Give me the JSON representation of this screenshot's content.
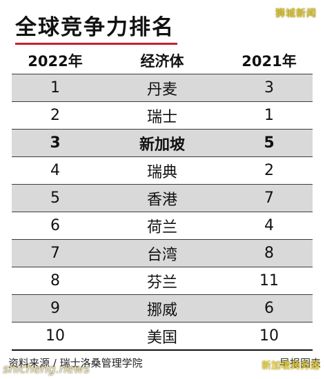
{
  "watermark_top": "狮城新闻",
  "title": "全球竞争力排名",
  "headers": [
    "2022年",
    "经济体",
    "2021年"
  ],
  "rows": [
    {
      "rank_2022": "1",
      "economy": "丹麦",
      "rank_2021": "3"
    },
    {
      "rank_2022": "2",
      "economy": "瑞士",
      "rank_2021": "1"
    },
    {
      "rank_2022": "3",
      "economy": "新加坡",
      "rank_2021": "5"
    },
    {
      "rank_2022": "4",
      "economy": "瑞典",
      "rank_2021": "2"
    },
    {
      "rank_2022": "5",
      "economy": "香港",
      "rank_2021": "7"
    },
    {
      "rank_2022": "6",
      "economy": "荷兰",
      "rank_2021": "4"
    },
    {
      "rank_2022": "7",
      "economy": "台湾",
      "rank_2021": "8"
    },
    {
      "rank_2022": "8",
      "economy": "芬兰",
      "rank_2021": "11"
    },
    {
      "rank_2022": "9",
      "economy": "挪威",
      "rank_2021": "6"
    },
    {
      "rank_2022": "10",
      "economy": "美国",
      "rank_2021": "10"
    }
  ],
  "source": "资料来源 / 瑞士洛桑管理学院",
  "watermark_bottom_left": "shicheng.news",
  "credit": "早报图表",
  "watermark_bottom_right": "新加坡商务通",
  "colors": {
    "accent_rule": "#c4212b",
    "row_shade": "#d9d9d9",
    "watermark": "#f1d82b"
  }
}
